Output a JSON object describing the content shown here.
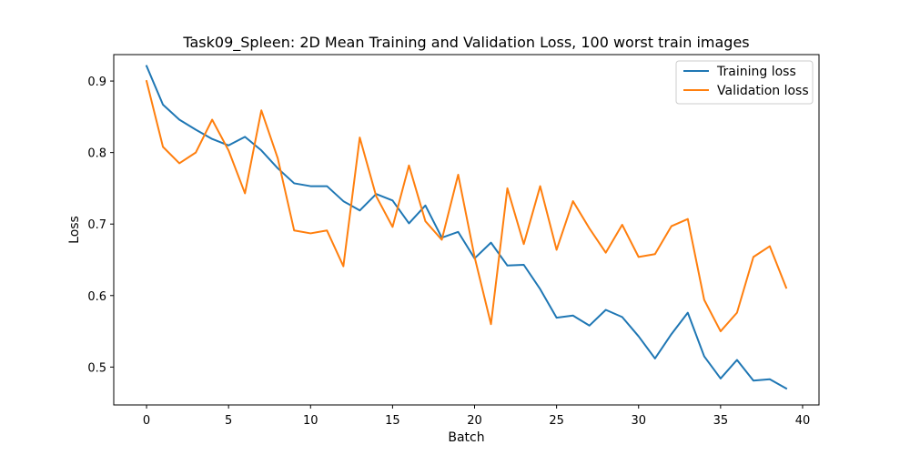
{
  "chart_data": {
    "type": "line",
    "title": "Task09_Spleen: 2D Mean Training and Validation Loss, 100 worst train images",
    "xlabel": "Batch",
    "ylabel": "Loss",
    "xlim": [
      -2,
      41
    ],
    "ylim": [
      0.447,
      0.937
    ],
    "xticks": [
      0,
      5,
      10,
      15,
      20,
      25,
      30,
      35,
      40
    ],
    "yticks": [
      0.5,
      0.6,
      0.7,
      0.8,
      0.9
    ],
    "grid": false,
    "legend_position": "top-right",
    "x": [
      0,
      1,
      2,
      3,
      4,
      5,
      6,
      7,
      8,
      9,
      10,
      11,
      12,
      13,
      14,
      15,
      16,
      17,
      18,
      19,
      20,
      21,
      22,
      23,
      24,
      25,
      26,
      27,
      28,
      29,
      30,
      31,
      32,
      33,
      34,
      35,
      36,
      37,
      38,
      39
    ],
    "series": [
      {
        "name": "Training loss",
        "color": "#1f77b4",
        "values": [
          0.921,
          0.867,
          0.846,
          0.832,
          0.819,
          0.81,
          0.822,
          0.803,
          0.778,
          0.757,
          0.753,
          0.753,
          0.732,
          0.719,
          0.742,
          0.733,
          0.701,
          0.726,
          0.681,
          0.689,
          0.652,
          0.674,
          0.642,
          0.643,
          0.609,
          0.569,
          0.572,
          0.558,
          0.58,
          0.57,
          0.543,
          0.512,
          0.546,
          0.576,
          0.515,
          0.484,
          0.51,
          0.481,
          0.483,
          0.47
        ]
      },
      {
        "name": "Validation loss",
        "color": "#ff7f0e",
        "values": [
          0.9,
          0.808,
          0.785,
          0.8,
          0.846,
          0.803,
          0.743,
          0.859,
          0.792,
          0.691,
          0.687,
          0.691,
          0.641,
          0.821,
          0.739,
          0.696,
          0.782,
          0.704,
          0.678,
          0.769,
          0.654,
          0.56,
          0.75,
          0.672,
          0.753,
          0.664,
          0.732,
          0.694,
          0.66,
          0.699,
          0.654,
          0.658,
          0.697,
          0.707,
          0.594,
          0.55,
          0.576,
          0.654,
          0.669,
          0.611
        ]
      }
    ]
  }
}
